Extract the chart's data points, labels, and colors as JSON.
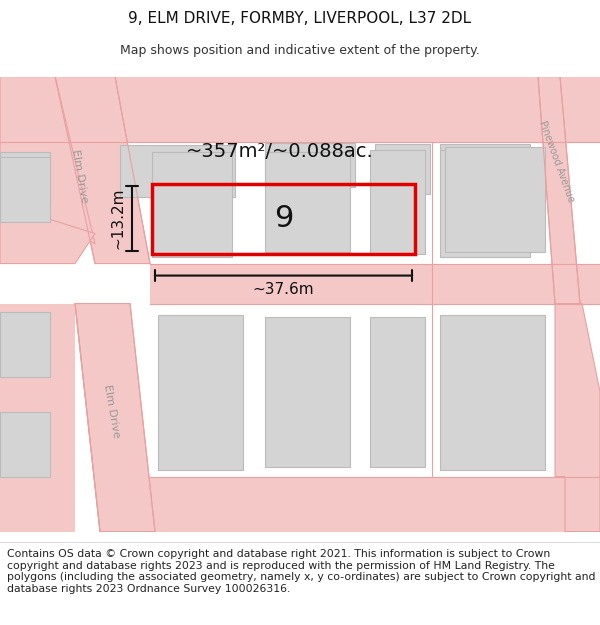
{
  "title": "9, ELM DRIVE, FORMBY, LIVERPOOL, L37 2DL",
  "subtitle": "Map shows position and indicative extent of the property.",
  "footer": "Contains OS data © Crown copyright and database right 2021. This information is subject to Crown copyright and database rights 2023 and is reproduced with the permission of HM Land Registry. The polygons (including the associated geometry, namely x, y co-ordinates) are subject to Crown copyright and database rights 2023 Ordnance Survey 100026316.",
  "area_label": "~357m²/~0.088ac.",
  "width_label": "~37.6m",
  "height_label": "~13.2m",
  "plot_number": "9",
  "road_color": "#f5c8c8",
  "road_edge_color": "#e8a0a0",
  "building_color": "#d4d4d4",
  "building_edge_color": "#bbbbbb",
  "map_bg": "#f8f8f8",
  "plot_edge_color": "#e00000",
  "title_fontsize": 11,
  "subtitle_fontsize": 9,
  "footer_fontsize": 7.8,
  "label_fontsize": 14,
  "number_fontsize": 22,
  "dim_fontsize": 11,
  "road_label_fontsize": 8,
  "road_label_color": "#999999"
}
